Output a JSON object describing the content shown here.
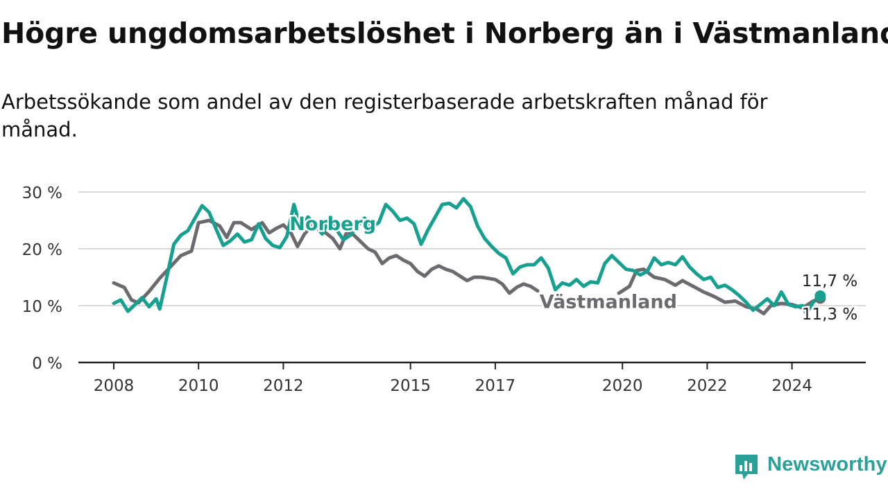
{
  "title": "Högre ungdomsarbetslöshet i Norberg än i Västmanland",
  "subtitle": "Arbetssökande som andel av den registerbaserade arbetskraften månad för månad.",
  "brand": "Newsworthy",
  "colors": {
    "norberg": "#16a090",
    "vastmanland": "#6b6b6f",
    "grid": "#d9d9d9",
    "axis": "#222222",
    "brand": "#2aa198"
  },
  "chart_data": {
    "type": "line",
    "title": "Högre ungdomsarbetslöshet i Norberg än i Västmanland",
    "xlabel": "",
    "ylabel": "",
    "ylim": [
      0,
      30
    ],
    "xlim": [
      "2008-01",
      "2024-12"
    ],
    "grid": "horizontal",
    "legend": "inline labels",
    "y_ticks": [
      {
        "value": 0,
        "label": "0 %"
      },
      {
        "value": 10,
        "label": "10 %"
      },
      {
        "value": 20,
        "label": "20 %"
      },
      {
        "value": 30,
        "label": "30 %"
      }
    ],
    "x_ticks": [
      {
        "date": "2008-01",
        "label": "2008"
      },
      {
        "date": "2010-01",
        "label": "2010"
      },
      {
        "date": "2012-01",
        "label": "2012"
      },
      {
        "date": "2015-01",
        "label": "2015"
      },
      {
        "date": "2017-01",
        "label": "2017"
      },
      {
        "date": "2020-01",
        "label": "2020"
      },
      {
        "date": "2022-01",
        "label": "2022"
      },
      {
        "date": "2024-01",
        "label": "2024"
      }
    ],
    "series": [
      {
        "name": "Västmanland",
        "label_date": "2019-09",
        "label_value": 10.7,
        "end_label": "11,3 %",
        "points": [
          [
            "2008-01",
            14.0
          ],
          [
            "2008-04",
            13.2
          ],
          [
            "2008-06",
            11.0
          ],
          [
            "2008-08",
            10.5
          ],
          [
            "2008-11",
            12.5
          ],
          [
            "2009-02",
            14.8
          ],
          [
            "2009-05",
            16.8
          ],
          [
            "2009-08",
            18.8
          ],
          [
            "2009-11",
            19.6
          ],
          [
            "2010-01",
            24.6
          ],
          [
            "2010-04",
            25.0
          ],
          [
            "2010-07",
            24.0
          ],
          [
            "2010-09",
            22.0
          ],
          [
            "2010-11",
            24.6
          ],
          [
            "2011-01",
            24.6
          ],
          [
            "2011-04",
            23.4
          ],
          [
            "2011-07",
            24.6
          ],
          [
            "2011-09",
            22.8
          ],
          [
            "2011-11",
            23.6
          ],
          [
            "2012-01",
            24.2
          ],
          [
            "2012-03",
            23.0
          ],
          [
            "2012-05",
            20.4
          ],
          [
            "2012-07",
            22.6
          ],
          [
            "2012-09",
            24.0
          ],
          [
            "2012-11",
            23.6
          ],
          [
            "2013-01",
            22.8
          ],
          [
            "2013-03",
            21.8
          ],
          [
            "2013-05",
            20.0
          ],
          [
            "2013-07",
            23.0
          ],
          [
            "2013-09",
            22.4
          ],
          [
            "2013-11",
            21.2
          ],
          [
            "2014-01",
            20.0
          ],
          [
            "2014-03",
            19.4
          ],
          [
            "2014-05",
            17.4
          ],
          [
            "2014-07",
            18.4
          ],
          [
            "2014-09",
            18.8
          ],
          [
            "2014-11",
            18.0
          ],
          [
            "2015-01",
            17.4
          ],
          [
            "2015-03",
            16.0
          ],
          [
            "2015-05",
            15.2
          ],
          [
            "2015-07",
            16.4
          ],
          [
            "2015-09",
            17.0
          ],
          [
            "2015-11",
            16.4
          ],
          [
            "2016-01",
            16.0
          ],
          [
            "2016-03",
            15.2
          ],
          [
            "2016-05",
            14.4
          ],
          [
            "2016-07",
            15.0
          ],
          [
            "2016-09",
            15.0
          ],
          [
            "2016-11",
            14.8
          ],
          [
            "2017-01",
            14.6
          ],
          [
            "2017-03",
            13.8
          ],
          [
            "2017-05",
            12.2
          ],
          [
            "2017-07",
            13.2
          ],
          [
            "2017-09",
            13.8
          ],
          [
            "2017-11",
            13.4
          ],
          [
            "2018-01",
            12.6
          ],
          [
            "2019-12",
            12.2
          ],
          [
            "2020-03",
            13.4
          ],
          [
            "2020-05",
            16.2
          ],
          [
            "2020-07",
            16.4
          ],
          [
            "2020-10",
            15.0
          ],
          [
            "2021-01",
            14.6
          ],
          [
            "2021-04",
            13.6
          ],
          [
            "2021-06",
            14.4
          ],
          [
            "2021-09",
            13.4
          ],
          [
            "2021-12",
            12.4
          ],
          [
            "2022-03",
            11.6
          ],
          [
            "2022-06",
            10.6
          ],
          [
            "2022-09",
            10.8
          ],
          [
            "2022-12",
            9.8
          ],
          [
            "2023-03",
            9.4
          ],
          [
            "2023-05",
            8.6
          ],
          [
            "2023-07",
            10.0
          ],
          [
            "2023-10",
            10.4
          ],
          [
            "2024-01",
            10.2
          ],
          [
            "2024-04",
            9.6
          ],
          [
            "2024-07",
            10.8
          ],
          [
            "2024-09",
            11.3
          ]
        ]
      },
      {
        "name": "Norberg",
        "label_date": "2013-03",
        "label_value": 24.4,
        "end_label": "11,7 %",
        "points": [
          [
            "2008-01",
            10.4
          ],
          [
            "2008-03",
            11.0
          ],
          [
            "2008-05",
            9.0
          ],
          [
            "2008-07",
            10.2
          ],
          [
            "2008-09",
            11.4
          ],
          [
            "2008-11",
            9.8
          ],
          [
            "2009-01",
            11.2
          ],
          [
            "2009-02",
            9.4
          ],
          [
            "2009-04",
            15.0
          ],
          [
            "2009-06",
            20.8
          ],
          [
            "2009-08",
            22.4
          ],
          [
            "2009-10",
            23.2
          ],
          [
            "2009-12",
            25.4
          ],
          [
            "2010-02",
            27.6
          ],
          [
            "2010-04",
            26.4
          ],
          [
            "2010-06",
            23.4
          ],
          [
            "2010-08",
            20.6
          ],
          [
            "2010-10",
            21.4
          ],
          [
            "2010-12",
            22.6
          ],
          [
            "2011-02",
            21.2
          ],
          [
            "2011-04",
            21.6
          ],
          [
            "2011-06",
            24.4
          ],
          [
            "2011-08",
            21.8
          ],
          [
            "2011-10",
            20.6
          ],
          [
            "2011-12",
            20.2
          ],
          [
            "2012-02",
            22.2
          ],
          [
            "2012-04",
            27.8
          ],
          [
            "2012-06",
            23.4
          ],
          [
            "2012-08",
            25.6
          ],
          [
            "2012-10",
            24.2
          ],
          [
            "2012-12",
            22.6
          ],
          [
            "2013-02",
            25.2
          ],
          [
            "2013-04",
            23.4
          ],
          [
            "2013-06",
            21.6
          ],
          [
            "2013-08",
            22.4
          ],
          [
            "2013-10",
            24.0
          ],
          [
            "2013-12",
            25.4
          ],
          [
            "2014-02",
            23.8
          ],
          [
            "2014-04",
            24.6
          ],
          [
            "2014-06",
            27.8
          ],
          [
            "2014-08",
            26.6
          ],
          [
            "2014-10",
            25.0
          ],
          [
            "2014-12",
            25.4
          ],
          [
            "2015-02",
            24.4
          ],
          [
            "2015-04",
            20.8
          ],
          [
            "2015-06",
            23.4
          ],
          [
            "2015-08",
            25.6
          ],
          [
            "2015-10",
            27.8
          ],
          [
            "2015-12",
            28.0
          ],
          [
            "2016-02",
            27.2
          ],
          [
            "2016-04",
            28.8
          ],
          [
            "2016-06",
            27.4
          ],
          [
            "2016-08",
            24.0
          ],
          [
            "2016-10",
            21.8
          ],
          [
            "2016-12",
            20.4
          ],
          [
            "2017-02",
            19.2
          ],
          [
            "2017-04",
            18.4
          ],
          [
            "2017-06",
            15.6
          ],
          [
            "2017-08",
            16.8
          ],
          [
            "2017-10",
            17.2
          ],
          [
            "2017-12",
            17.2
          ],
          [
            "2018-02",
            18.4
          ],
          [
            "2018-04",
            16.6
          ],
          [
            "2018-06",
            12.8
          ],
          [
            "2018-08",
            14.0
          ],
          [
            "2018-10",
            13.6
          ],
          [
            "2018-12",
            14.6
          ],
          [
            "2019-02",
            13.4
          ],
          [
            "2019-04",
            14.2
          ],
          [
            "2019-06",
            14.0
          ],
          [
            "2019-08",
            17.4
          ],
          [
            "2019-10",
            18.8
          ],
          [
            "2019-12",
            17.6
          ],
          [
            "2020-02",
            16.4
          ],
          [
            "2020-04",
            16.2
          ],
          [
            "2020-06",
            15.4
          ],
          [
            "2020-08",
            16.0
          ],
          [
            "2020-10",
            18.4
          ],
          [
            "2020-12",
            17.2
          ],
          [
            "2021-02",
            17.6
          ],
          [
            "2021-04",
            17.2
          ],
          [
            "2021-06",
            18.6
          ],
          [
            "2021-08",
            16.8
          ],
          [
            "2021-10",
            15.6
          ],
          [
            "2021-12",
            14.6
          ],
          [
            "2022-02",
            15.0
          ],
          [
            "2022-04",
            13.2
          ],
          [
            "2022-06",
            13.6
          ],
          [
            "2022-08",
            12.8
          ],
          [
            "2022-10",
            11.8
          ],
          [
            "2022-12",
            10.6
          ],
          [
            "2023-02",
            9.2
          ],
          [
            "2023-04",
            10.2
          ],
          [
            "2023-06",
            11.2
          ],
          [
            "2023-08",
            10.0
          ],
          [
            "2023-10",
            12.4
          ],
          [
            "2023-12",
            10.2
          ],
          [
            "2024-02",
            9.8
          ],
          [
            "2024-04",
            10.0
          ],
          [
            "2024-05",
            8.6
          ],
          [
            "2024-07",
            10.6
          ],
          [
            "2024-09",
            11.7
          ]
        ]
      }
    ]
  }
}
